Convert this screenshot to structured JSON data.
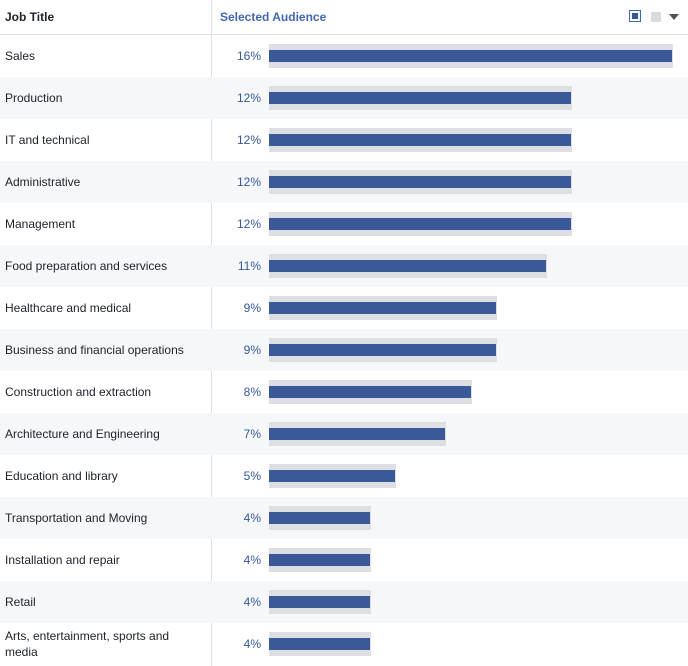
{
  "header": {
    "column_label": "Job Title",
    "audience_label": "Selected Audience"
  },
  "controls": {
    "selected_view_icon": "filled-square-icon",
    "alternate_view_icon": "gray-square-icon",
    "dropdown_icon": "caret-down-icon"
  },
  "colors": {
    "bar": "#3b5998",
    "track": "#dddfe2",
    "accent": "#4267b2"
  },
  "rows": [
    {
      "label": "Sales",
      "percent": "16%",
      "value": 16
    },
    {
      "label": "Production",
      "percent": "12%",
      "value": 12
    },
    {
      "label": "IT and technical",
      "percent": "12%",
      "value": 12
    },
    {
      "label": "Administrative",
      "percent": "12%",
      "value": 12
    },
    {
      "label": "Management",
      "percent": "12%",
      "value": 12
    },
    {
      "label": "Food preparation and services",
      "percent": "11%",
      "value": 11
    },
    {
      "label": "Healthcare and medical",
      "percent": "9%",
      "value": 9
    },
    {
      "label": "Business and financial operations",
      "percent": "9%",
      "value": 9
    },
    {
      "label": "Construction and extraction",
      "percent": "8%",
      "value": 8
    },
    {
      "label": "Architecture and Engineering",
      "percent": "7%",
      "value": 7
    },
    {
      "label": "Education and library",
      "percent": "5%",
      "value": 5
    },
    {
      "label": "Transportation and Moving",
      "percent": "4%",
      "value": 4
    },
    {
      "label": "Installation and repair",
      "percent": "4%",
      "value": 4
    },
    {
      "label": "Retail",
      "percent": "4%",
      "value": 4
    },
    {
      "label": "Arts, entertainment, sports and media",
      "percent": "4%",
      "value": 4
    }
  ]
}
